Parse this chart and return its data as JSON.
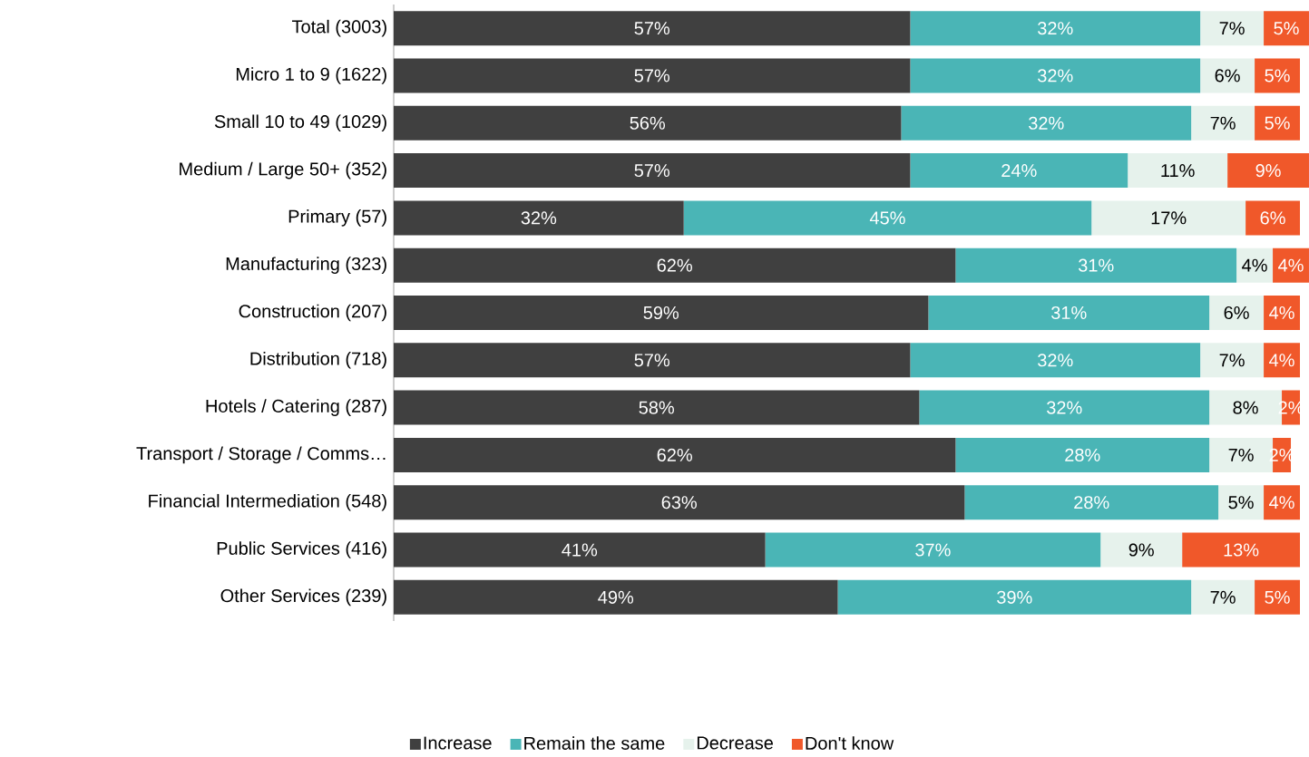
{
  "chart_data": {
    "type": "bar",
    "orientation": "horizontal",
    "stacked": true,
    "legend": "bottom",
    "categories": [
      "Total (3003)",
      "Micro 1 to 9 (1622)",
      "Small 10 to 49 (1029)",
      "Medium / Large 50+ (352)",
      "Primary  (57)",
      "Manufacturing (323)",
      "Construction (207)",
      "Distribution  (718)",
      "Hotels / Catering  (287)",
      "Transport / Storage / Comms…",
      "Financial Intermediation  (548)",
      "Public Services  (416)",
      "Other Services  (239)"
    ],
    "series": [
      {
        "name": "Increase",
        "color": "#404040",
        "values": [
          57,
          57,
          56,
          57,
          32,
          62,
          59,
          57,
          58,
          62,
          63,
          41,
          49
        ],
        "value_labels": [
          "57%",
          "57%",
          "56%",
          "57%",
          "32%",
          "62%",
          "59%",
          "57%",
          "58%",
          "62%",
          "63%",
          "41%",
          "49%"
        ]
      },
      {
        "name": "Remain the same",
        "color": "#4ab5b6",
        "values": [
          32,
          32,
          32,
          24,
          45,
          31,
          31,
          32,
          32,
          28,
          28,
          37,
          39
        ],
        "value_labels": [
          "32%",
          "32%",
          "32%",
          "24%",
          "45%",
          "31%",
          "31%",
          "32%",
          "32%",
          "28%",
          "28%",
          "37%",
          "39%"
        ]
      },
      {
        "name": "Decrease",
        "color": "#e6f2ec",
        "values": [
          7,
          6,
          7,
          11,
          17,
          4,
          6,
          7,
          8,
          7,
          5,
          9,
          7
        ],
        "value_labels": [
          "7%",
          "6%",
          "7%",
          "11%",
          "17%",
          "4%",
          "6%",
          "7%",
          "8%",
          "7%",
          "5%",
          "9%",
          "7%"
        ]
      },
      {
        "name": "Don't know",
        "color": "#f0582a",
        "values": [
          5,
          5,
          5,
          9,
          6,
          4,
          4,
          4,
          2,
          2,
          4,
          13,
          5
        ],
        "value_labels": [
          "5%",
          "5%",
          "5%",
          "9%",
          "6%",
          "4%",
          "4%",
          "4%",
          "2%",
          "2%",
          "4%",
          "13%",
          "5%"
        ]
      }
    ]
  }
}
